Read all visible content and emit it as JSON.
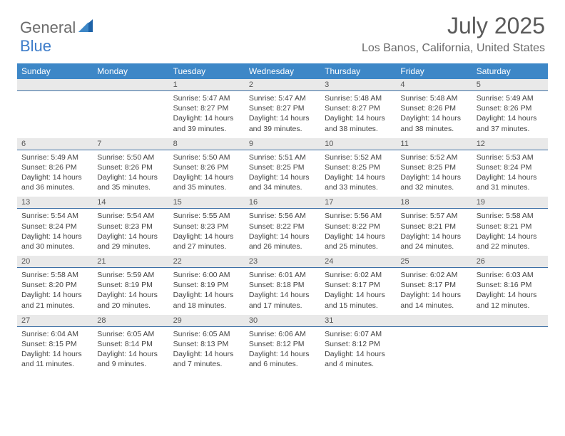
{
  "brand": {
    "part1": "General",
    "part2": "Blue"
  },
  "title": "July 2025",
  "location": "Los Banos, California, United States",
  "colors": {
    "header_bg": "#3d87c7",
    "header_text": "#ffffff",
    "numrow_bg": "#e9e9e9",
    "numrow_border": "#3d6fa5",
    "title_color": "#5a5a5a",
    "location_color": "#6b6b6b",
    "logo_gray": "#6b6b6b",
    "logo_blue": "#3d7cc9"
  },
  "day_headers": [
    "Sunday",
    "Monday",
    "Tuesday",
    "Wednesday",
    "Thursday",
    "Friday",
    "Saturday"
  ],
  "weeks": [
    [
      null,
      null,
      {
        "n": "1",
        "sr": "Sunrise: 5:47 AM",
        "ss": "Sunset: 8:27 PM",
        "d1": "Daylight: 14 hours",
        "d2": "and 39 minutes."
      },
      {
        "n": "2",
        "sr": "Sunrise: 5:47 AM",
        "ss": "Sunset: 8:27 PM",
        "d1": "Daylight: 14 hours",
        "d2": "and 39 minutes."
      },
      {
        "n": "3",
        "sr": "Sunrise: 5:48 AM",
        "ss": "Sunset: 8:27 PM",
        "d1": "Daylight: 14 hours",
        "d2": "and 38 minutes."
      },
      {
        "n": "4",
        "sr": "Sunrise: 5:48 AM",
        "ss": "Sunset: 8:26 PM",
        "d1": "Daylight: 14 hours",
        "d2": "and 38 minutes."
      },
      {
        "n": "5",
        "sr": "Sunrise: 5:49 AM",
        "ss": "Sunset: 8:26 PM",
        "d1": "Daylight: 14 hours",
        "d2": "and 37 minutes."
      }
    ],
    [
      {
        "n": "6",
        "sr": "Sunrise: 5:49 AM",
        "ss": "Sunset: 8:26 PM",
        "d1": "Daylight: 14 hours",
        "d2": "and 36 minutes."
      },
      {
        "n": "7",
        "sr": "Sunrise: 5:50 AM",
        "ss": "Sunset: 8:26 PM",
        "d1": "Daylight: 14 hours",
        "d2": "and 35 minutes."
      },
      {
        "n": "8",
        "sr": "Sunrise: 5:50 AM",
        "ss": "Sunset: 8:26 PM",
        "d1": "Daylight: 14 hours",
        "d2": "and 35 minutes."
      },
      {
        "n": "9",
        "sr": "Sunrise: 5:51 AM",
        "ss": "Sunset: 8:25 PM",
        "d1": "Daylight: 14 hours",
        "d2": "and 34 minutes."
      },
      {
        "n": "10",
        "sr": "Sunrise: 5:52 AM",
        "ss": "Sunset: 8:25 PM",
        "d1": "Daylight: 14 hours",
        "d2": "and 33 minutes."
      },
      {
        "n": "11",
        "sr": "Sunrise: 5:52 AM",
        "ss": "Sunset: 8:25 PM",
        "d1": "Daylight: 14 hours",
        "d2": "and 32 minutes."
      },
      {
        "n": "12",
        "sr": "Sunrise: 5:53 AM",
        "ss": "Sunset: 8:24 PM",
        "d1": "Daylight: 14 hours",
        "d2": "and 31 minutes."
      }
    ],
    [
      {
        "n": "13",
        "sr": "Sunrise: 5:54 AM",
        "ss": "Sunset: 8:24 PM",
        "d1": "Daylight: 14 hours",
        "d2": "and 30 minutes."
      },
      {
        "n": "14",
        "sr": "Sunrise: 5:54 AM",
        "ss": "Sunset: 8:23 PM",
        "d1": "Daylight: 14 hours",
        "d2": "and 29 minutes."
      },
      {
        "n": "15",
        "sr": "Sunrise: 5:55 AM",
        "ss": "Sunset: 8:23 PM",
        "d1": "Daylight: 14 hours",
        "d2": "and 27 minutes."
      },
      {
        "n": "16",
        "sr": "Sunrise: 5:56 AM",
        "ss": "Sunset: 8:22 PM",
        "d1": "Daylight: 14 hours",
        "d2": "and 26 minutes."
      },
      {
        "n": "17",
        "sr": "Sunrise: 5:56 AM",
        "ss": "Sunset: 8:22 PM",
        "d1": "Daylight: 14 hours",
        "d2": "and 25 minutes."
      },
      {
        "n": "18",
        "sr": "Sunrise: 5:57 AM",
        "ss": "Sunset: 8:21 PM",
        "d1": "Daylight: 14 hours",
        "d2": "and 24 minutes."
      },
      {
        "n": "19",
        "sr": "Sunrise: 5:58 AM",
        "ss": "Sunset: 8:21 PM",
        "d1": "Daylight: 14 hours",
        "d2": "and 22 minutes."
      }
    ],
    [
      {
        "n": "20",
        "sr": "Sunrise: 5:58 AM",
        "ss": "Sunset: 8:20 PM",
        "d1": "Daylight: 14 hours",
        "d2": "and 21 minutes."
      },
      {
        "n": "21",
        "sr": "Sunrise: 5:59 AM",
        "ss": "Sunset: 8:19 PM",
        "d1": "Daylight: 14 hours",
        "d2": "and 20 minutes."
      },
      {
        "n": "22",
        "sr": "Sunrise: 6:00 AM",
        "ss": "Sunset: 8:19 PM",
        "d1": "Daylight: 14 hours",
        "d2": "and 18 minutes."
      },
      {
        "n": "23",
        "sr": "Sunrise: 6:01 AM",
        "ss": "Sunset: 8:18 PM",
        "d1": "Daylight: 14 hours",
        "d2": "and 17 minutes."
      },
      {
        "n": "24",
        "sr": "Sunrise: 6:02 AM",
        "ss": "Sunset: 8:17 PM",
        "d1": "Daylight: 14 hours",
        "d2": "and 15 minutes."
      },
      {
        "n": "25",
        "sr": "Sunrise: 6:02 AM",
        "ss": "Sunset: 8:17 PM",
        "d1": "Daylight: 14 hours",
        "d2": "and 14 minutes."
      },
      {
        "n": "26",
        "sr": "Sunrise: 6:03 AM",
        "ss": "Sunset: 8:16 PM",
        "d1": "Daylight: 14 hours",
        "d2": "and 12 minutes."
      }
    ],
    [
      {
        "n": "27",
        "sr": "Sunrise: 6:04 AM",
        "ss": "Sunset: 8:15 PM",
        "d1": "Daylight: 14 hours",
        "d2": "and 11 minutes."
      },
      {
        "n": "28",
        "sr": "Sunrise: 6:05 AM",
        "ss": "Sunset: 8:14 PM",
        "d1": "Daylight: 14 hours",
        "d2": "and 9 minutes."
      },
      {
        "n": "29",
        "sr": "Sunrise: 6:05 AM",
        "ss": "Sunset: 8:13 PM",
        "d1": "Daylight: 14 hours",
        "d2": "and 7 minutes."
      },
      {
        "n": "30",
        "sr": "Sunrise: 6:06 AM",
        "ss": "Sunset: 8:12 PM",
        "d1": "Daylight: 14 hours",
        "d2": "and 6 minutes."
      },
      {
        "n": "31",
        "sr": "Sunrise: 6:07 AM",
        "ss": "Sunset: 8:12 PM",
        "d1": "Daylight: 14 hours",
        "d2": "and 4 minutes."
      },
      null,
      null
    ]
  ]
}
